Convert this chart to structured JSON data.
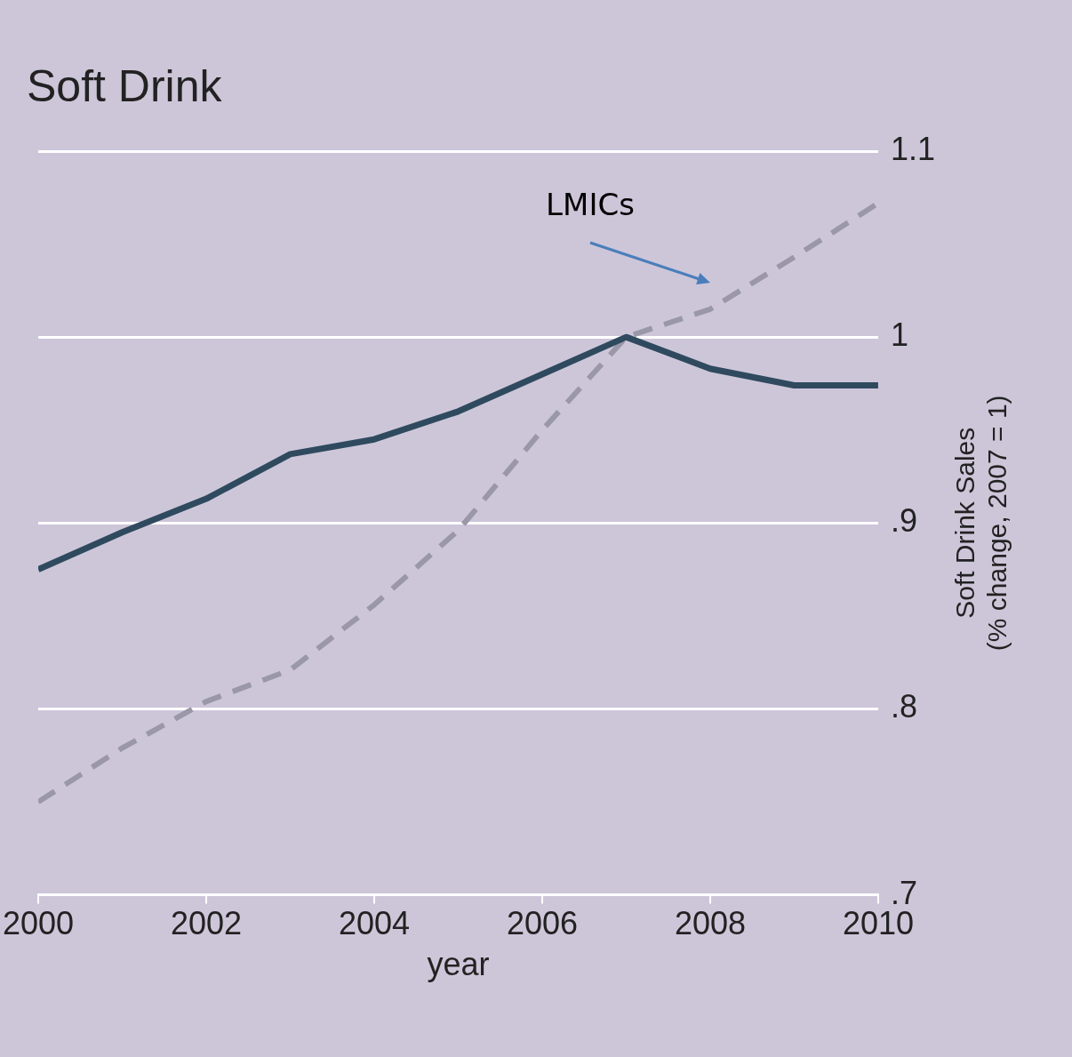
{
  "chart_data": {
    "type": "line",
    "title": "Soft Drink",
    "xlabel": "year",
    "ylabel": "Soft Drink Sales\n(% change, 2007 = 1)",
    "x": [
      2000,
      2001,
      2002,
      2003,
      2004,
      2005,
      2006,
      2007,
      2008,
      2009,
      2010
    ],
    "series": [
      {
        "color": "#2f4a5e",
        "line_style": "solid",
        "values": [
          0.875,
          0.895,
          0.913,
          0.937,
          0.945,
          0.96,
          0.98,
          1.0,
          0.983,
          0.974,
          0.974
        ]
      },
      {
        "name": "LMICs",
        "color": "#9a97a8",
        "line_style": "dashed",
        "values": [
          0.75,
          0.779,
          0.804,
          0.821,
          0.856,
          0.896,
          0.95,
          1.0,
          1.015,
          1.043,
          1.072
        ]
      }
    ],
    "xlim": [
      2000,
      2010
    ],
    "xticks": [
      2000,
      2002,
      2004,
      2006,
      2008,
      2010
    ],
    "ylim": [
      0.7,
      1.1
    ],
    "yticks": [
      {
        "value": 0.7,
        "label": ".7"
      },
      {
        "value": 0.8,
        "label": ".8"
      },
      {
        "value": 0.9,
        "label": ".9"
      },
      {
        "value": 1.0,
        "label": "1"
      },
      {
        "value": 1.1,
        "label": "1.1"
      }
    ],
    "grid": "y",
    "legend": false,
    "marker": "none"
  }
}
